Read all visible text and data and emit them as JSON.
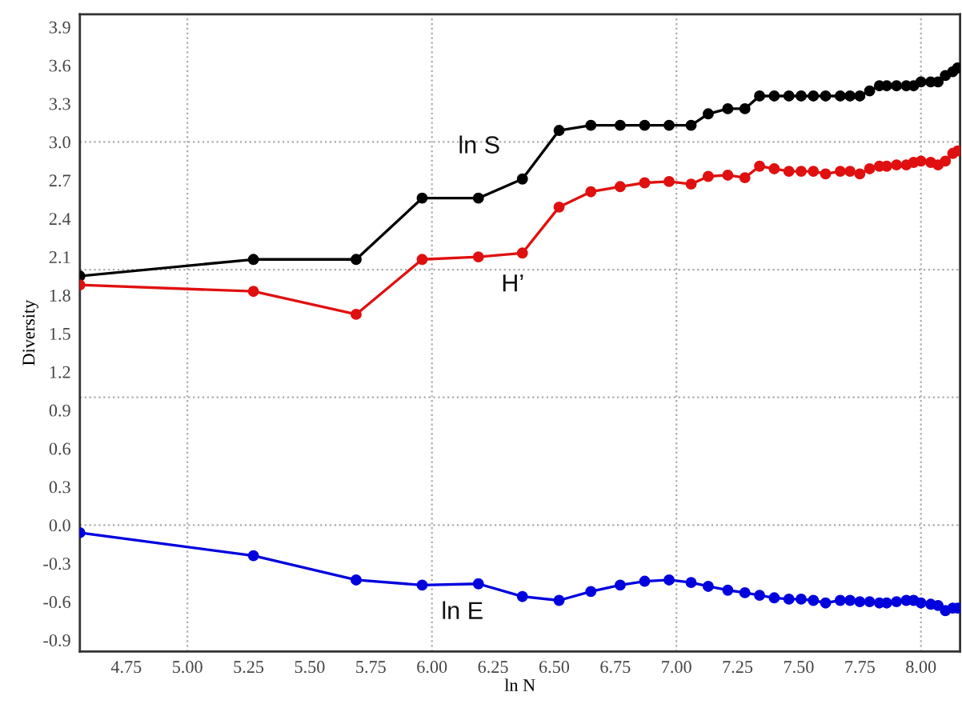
{
  "chart_data": {
    "type": "line",
    "xlabel": "ln N",
    "ylabel": "Diversity",
    "x": [
      4.56,
      5.27,
      5.69,
      5.96,
      6.19,
      6.37,
      6.52,
      6.65,
      6.77,
      6.87,
      6.97,
      7.06,
      7.13,
      7.21,
      7.28,
      7.34,
      7.4,
      7.46,
      7.51,
      7.56,
      7.61,
      7.67,
      7.71,
      7.75,
      7.79,
      7.83,
      7.86,
      7.9,
      7.94,
      7.97,
      8.0,
      8.04,
      8.07,
      8.1,
      8.13,
      8.15
    ],
    "series": [
      {
        "name": "ln S",
        "color": "#000000",
        "values": [
          1.95,
          2.08,
          2.08,
          2.56,
          2.56,
          2.71,
          3.09,
          3.13,
          3.13,
          3.13,
          3.13,
          3.13,
          3.22,
          3.26,
          3.26,
          3.36,
          3.36,
          3.36,
          3.36,
          3.36,
          3.36,
          3.36,
          3.36,
          3.36,
          3.4,
          3.44,
          3.44,
          3.44,
          3.44,
          3.44,
          3.47,
          3.47,
          3.47,
          3.52,
          3.55,
          3.58
        ]
      },
      {
        "name": "H’",
        "color": "#e01010",
        "values": [
          1.88,
          1.83,
          1.65,
          2.08,
          2.1,
          2.13,
          2.49,
          2.61,
          2.65,
          2.68,
          2.69,
          2.67,
          2.73,
          2.74,
          2.72,
          2.81,
          2.79,
          2.77,
          2.77,
          2.77,
          2.75,
          2.77,
          2.77,
          2.75,
          2.79,
          2.81,
          2.81,
          2.82,
          2.82,
          2.84,
          2.85,
          2.84,
          2.82,
          2.85,
          2.91,
          2.93
        ]
      },
      {
        "name": "ln E",
        "color": "#0000dd",
        "values": [
          -0.06,
          -0.24,
          -0.43,
          -0.47,
          -0.46,
          -0.56,
          -0.59,
          -0.52,
          -0.47,
          -0.44,
          -0.43,
          -0.45,
          -0.48,
          -0.51,
          -0.53,
          -0.55,
          -0.57,
          -0.58,
          -0.58,
          -0.59,
          -0.61,
          -0.59,
          -0.59,
          -0.6,
          -0.6,
          -0.61,
          -0.61,
          -0.6,
          -0.59,
          -0.59,
          -0.61,
          -0.62,
          -0.63,
          -0.67,
          -0.65,
          -0.65
        ]
      }
    ],
    "xlim": [
      4.56,
      8.16
    ],
    "ylim": [
      -0.99,
      4.0
    ],
    "xticks": [
      4.75,
      {
        "value": 5,
        "label": "5.00"
      },
      5.25,
      {
        "value": 5.5,
        "label": "5.50"
      },
      5.75,
      {
        "value": 6,
        "label": "6.00"
      },
      6.25,
      {
        "value": 6.5,
        "label": "6.50"
      },
      6.75,
      {
        "value": 7,
        "label": "7.00"
      },
      7.25,
      {
        "value": 7.5,
        "label": "7.50"
      },
      7.75,
      {
        "value": 8,
        "label": "8.00"
      }
    ],
    "yticks": [
      -0.9,
      -0.6,
      -0.3,
      {
        "value": 0,
        "label": "0.0"
      },
      0.3,
      0.6,
      0.9,
      1.2,
      1.5,
      1.8,
      2.1,
      2.4,
      2.7,
      {
        "value": 3,
        "label": "3.0"
      },
      3.3,
      3.6,
      3.9
    ],
    "ref_lines": [
      {
        "axis": "x",
        "value": 5,
        "color": "#aaaaaa",
        "line_style": "dotted"
      },
      {
        "axis": "x",
        "value": 6,
        "color": "#aaaaaa",
        "line_style": "dotted"
      },
      {
        "axis": "x",
        "value": 7,
        "color": "#aaaaaa",
        "line_style": "dotted"
      },
      {
        "axis": "x",
        "value": 8,
        "color": "#aaaaaa",
        "line_style": "dotted"
      },
      {
        "axis": "y",
        "value": 0,
        "color": "#aaaaaa",
        "line_style": "dotted"
      },
      {
        "axis": "y",
        "value": 1,
        "color": "#aaaaaa",
        "line_style": "dotted"
      },
      {
        "axis": "y",
        "value": 2,
        "color": "#aaaaaa",
        "line_style": "dotted"
      },
      {
        "axis": "y",
        "value": 3,
        "color": "#aaaaaa",
        "line_style": "dotted"
      }
    ],
    "grid": false,
    "legend": false,
    "marker": "circle",
    "line_style": "solid"
  }
}
